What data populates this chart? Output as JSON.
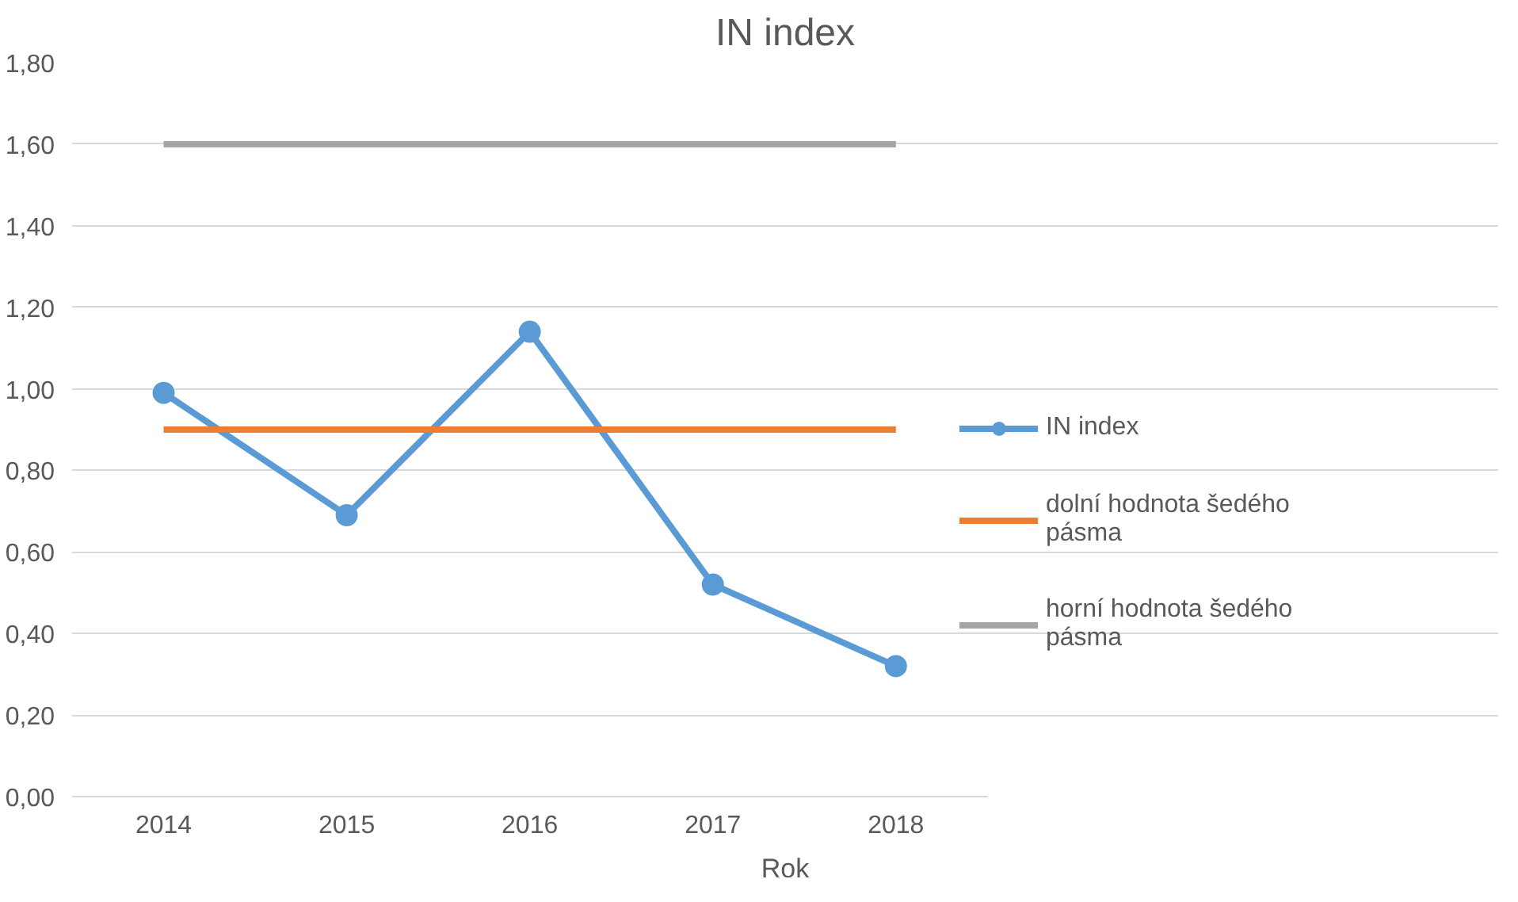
{
  "chart_data": {
    "type": "line",
    "title": "IN index",
    "xlabel": "Rok",
    "categories": [
      "2014",
      "2015",
      "2016",
      "2017",
      "2018"
    ],
    "series": [
      {
        "name": "IN index",
        "color": "#5b9bd5",
        "values": [
          0.99,
          0.69,
          1.14,
          0.52,
          0.32
        ],
        "marker": "circle"
      },
      {
        "name": "dolní hodnota šedého pásma",
        "color": "#ed7d31",
        "values": [
          0.9,
          0.9,
          0.9,
          0.9,
          0.9
        ],
        "marker": "none"
      },
      {
        "name": "horní hodnota šedého pásma",
        "color": "#a5a5a5",
        "values": [
          1.6,
          1.6,
          1.6,
          1.6,
          1.6
        ],
        "marker": "none"
      }
    ],
    "ylim": [
      0,
      1.8
    ],
    "yticks": [
      {
        "value": 0,
        "label": "0,00"
      },
      {
        "value": 0.2,
        "label": "0,20"
      },
      {
        "value": 0.4,
        "label": "0,40"
      },
      {
        "value": 0.6,
        "label": "0,60"
      },
      {
        "value": 0.8,
        "label": "0,80"
      },
      {
        "value": 1.0,
        "label": "1,00"
      },
      {
        "value": 1.2,
        "label": "1,20"
      },
      {
        "value": 1.4,
        "label": "1,40"
      },
      {
        "value": 1.6,
        "label": "1,60"
      },
      {
        "value": 1.8,
        "label": "1,80"
      }
    ],
    "grid": "y",
    "legend": "right",
    "line_style": "solid"
  }
}
